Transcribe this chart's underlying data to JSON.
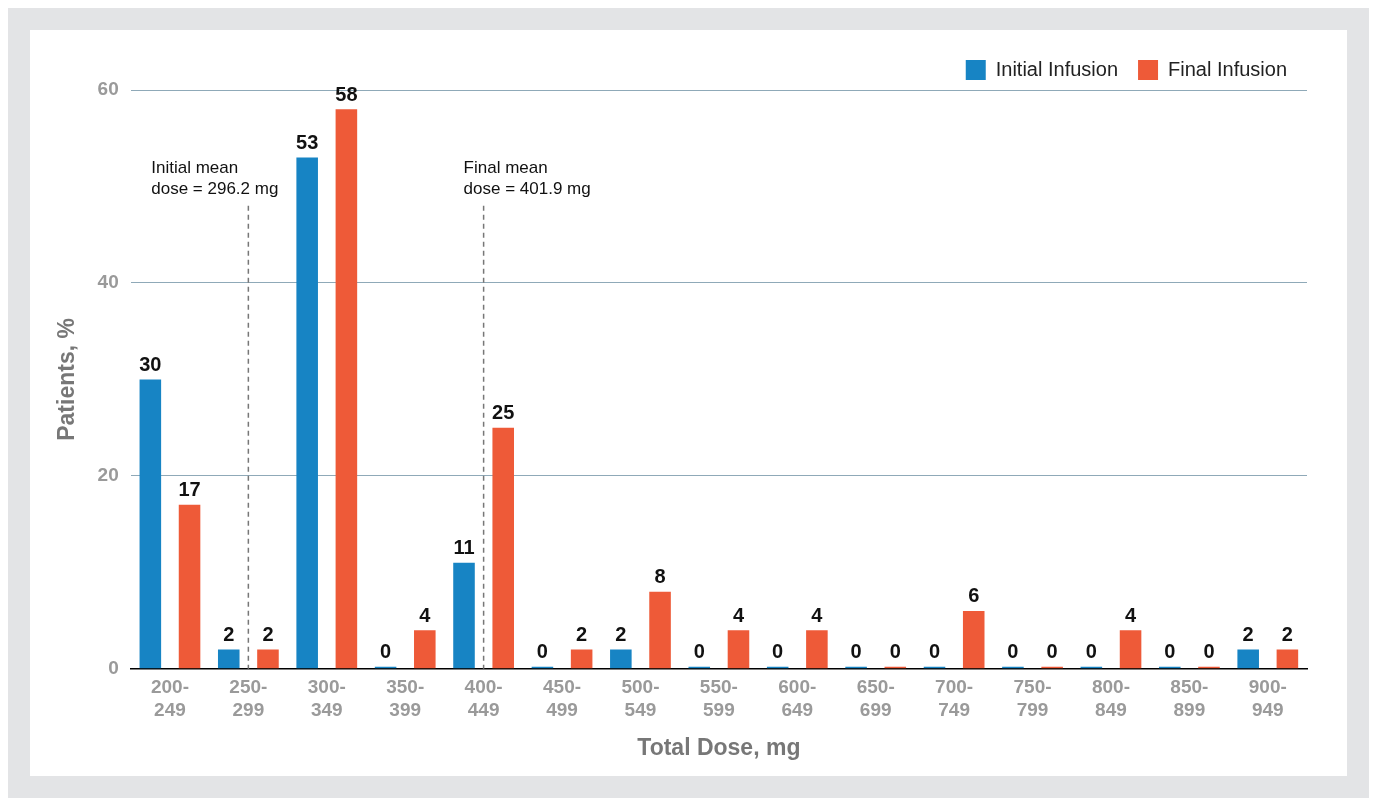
{
  "chart_data": {
    "type": "bar",
    "xlabel": "Total Dose, mg",
    "ylabel": "Patients, %",
    "categories": [
      "200-249",
      "250-299",
      "300-349",
      "350-399",
      "400-449",
      "450-499",
      "500-549",
      "550-599",
      "600-649",
      "650-699",
      "700-749",
      "750-799",
      "800-849",
      "850-899",
      "900-949"
    ],
    "series": [
      {
        "name": "Initial Infusion",
        "color": "#1784c4",
        "values": [
          30,
          2,
          53,
          0,
          11,
          0,
          2,
          0,
          0,
          0,
          0,
          0,
          0,
          0,
          2
        ]
      },
      {
        "name": "Final Infusion",
        "color": "#ee5a38",
        "values": [
          17,
          2,
          58,
          4,
          25,
          2,
          8,
          4,
          4,
          0,
          6,
          0,
          4,
          0,
          2
        ]
      }
    ],
    "ylim": [
      0,
      60
    ],
    "yticks": [
      0,
      20,
      40,
      60
    ],
    "grid": "y",
    "legend": "top right",
    "data_labels": true,
    "ref_lines": [
      {
        "axis": "x",
        "value": "250-299",
        "label": "Initial mean\ndose = 296.2 mg",
        "color": "#777777",
        "line_style": "dashed"
      },
      {
        "axis": "x",
        "value": "400-449",
        "label": "Final mean\ndose = 401.9 mg",
        "color": "#777777",
        "line_style": "dashed"
      }
    ]
  }
}
